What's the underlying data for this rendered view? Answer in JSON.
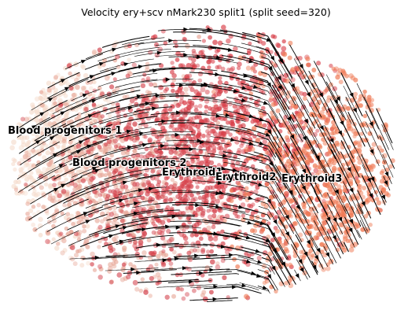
{
  "chart_data": {
    "type": "scatter",
    "title": "Velocity ery+scv nMark230 split1 (split seed=320)",
    "overlay": "velocity-streamlines",
    "axes_visible": false,
    "colors": {
      "Blood progenitors 1": "#f5dccd",
      "Blood progenitors 2": "#e8a99a",
      "Erythroid1": "#d4454f",
      "Erythroid2": "#d9404a",
      "Erythroid3": "#ef7a55"
    },
    "clusters": [
      {
        "name": "Blood progenitors 1"
      },
      {
        "name": "Blood progenitors 2"
      },
      {
        "name": "Erythroid1"
      },
      {
        "name": "Erythroid2"
      },
      {
        "name": "Erythroid3"
      }
    ],
    "legend": "on data"
  }
}
